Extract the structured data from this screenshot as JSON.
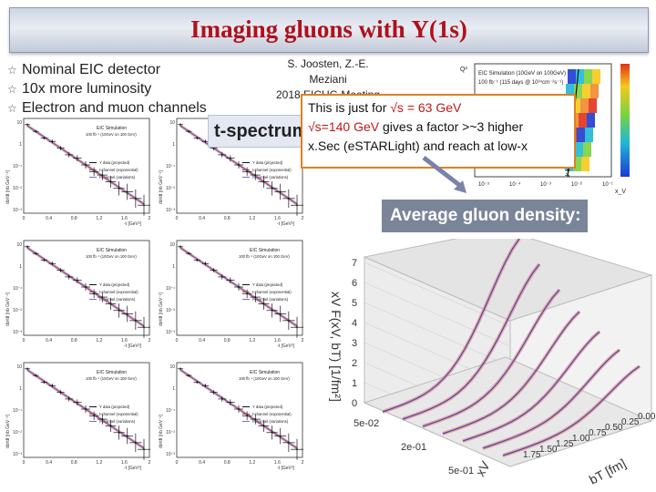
{
  "slide": {
    "title": "Imaging gluons with Υ(1s)",
    "bullets": [
      "Nominal EIC detector",
      "10x more luminosity",
      "Electron and muon channels"
    ],
    "credit_line1": "S. Joosten, Z.-E. Meziani",
    "credit_line2": "2018 EICUG Meeting",
    "t_spectrum_label": "t-spectrum",
    "note_line1_pre": "This is just for ",
    "note_line1_hl": "√s = 63 GeV",
    "note_line2_hl": "√s=140 GeV",
    "note_line2_post": " gives a factor >~3 higher",
    "note_line3": "x.Sec (eSTARLight) and reach at low-x",
    "avg_gluon_label": "Average gluon density:"
  },
  "panels": {
    "sim_title": "EIC Simulation",
    "sim_lumi": "100 fb⁻¹ (10GeV on 100 GeV)",
    "legend": [
      "Υ data (projected)",
      "t-channel (exponential)",
      "t-channel (variations)"
    ],
    "ylabel": "dσ/dt [nb GeV⁻²]",
    "xlabel": "-t [GeV²]",
    "xticks": [
      "0",
      "0.2",
      "0.4",
      "0.6",
      "0.8",
      "1",
      "1.2",
      "1.4",
      "1.6",
      "1.8",
      "2"
    ],
    "yticks": [
      "10",
      "1",
      "10⁻¹",
      "10⁻²",
      "10⁻³"
    ]
  },
  "phase_plot": {
    "title": "EIC Simulation (10GeV on 100GeV)",
    "lumi": "100 fb⁻¹ (115 days @ 10³⁴cm⁻²s⁻¹)",
    "xlabel": "x_V",
    "ylabel": "Q²",
    "cut_label": "y > 0.8",
    "xticks": [
      "10⁻⁵",
      "10⁻⁴",
      "10⁻³",
      "10⁻²",
      "10⁻¹"
    ]
  },
  "surface": {
    "zlabel": "xV F(xV, bT) [1/fm²]",
    "xlabel": "xV",
    "ylabel": "bT [fm]",
    "zticks": [
      "0",
      "1",
      "2",
      "3",
      "4",
      "5",
      "6",
      "7"
    ],
    "xticks": [
      "5e-02",
      "2e-01",
      "5e-01"
    ],
    "yticks": [
      "0.00",
      "0.25",
      "0.50",
      "0.75",
      "1.00",
      "1.25",
      "1.50",
      "1.75",
      "2.00"
    ]
  },
  "colors": {
    "title": "#b0101c",
    "note_border": "#e08020",
    "highlight": "#c01818"
  }
}
